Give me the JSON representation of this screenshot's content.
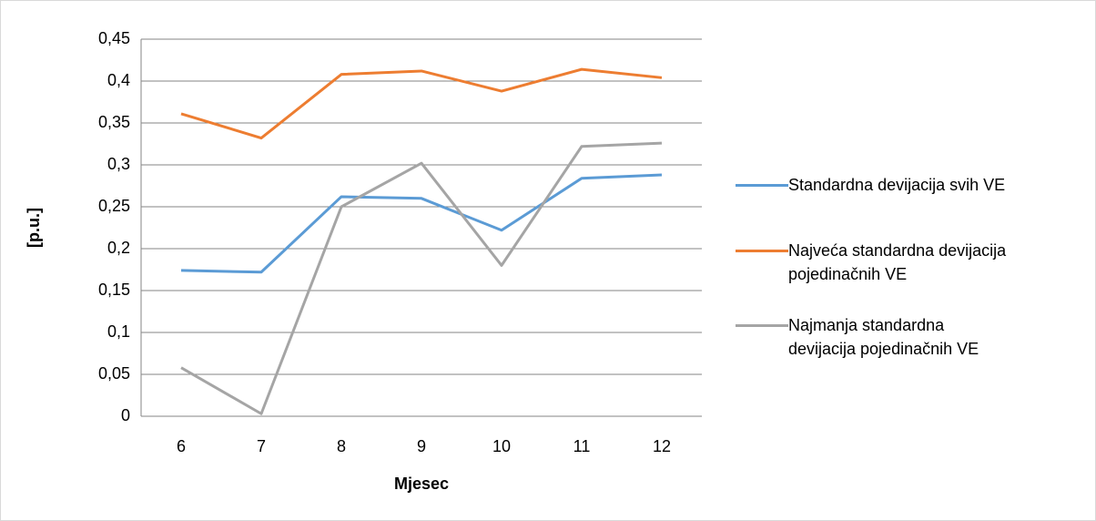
{
  "chart_data": {
    "type": "line",
    "x_label": "Mjesec",
    "y_label": "[p.u.]",
    "categories": [
      "6",
      "7",
      "8",
      "9",
      "10",
      "11",
      "12"
    ],
    "series": [
      {
        "name": "Standardna devijacija svih VE",
        "color": "#5b9bd5",
        "values": [
          0.174,
          0.172,
          0.262,
          0.26,
          0.222,
          0.284,
          0.288
        ]
      },
      {
        "name": "Najveća standardna devijacija pojedinačnih VE",
        "color": "#ed7d31",
        "values": [
          0.361,
          0.332,
          0.408,
          0.412,
          0.388,
          0.414,
          0.404
        ]
      },
      {
        "name": "Najmanja standardna devijacija pojedinačnih VE",
        "color": "#a5a5a5",
        "values": [
          0.058,
          0.003,
          0.25,
          0.302,
          0.18,
          0.322,
          0.326
        ]
      }
    ],
    "ylim": [
      0,
      0.45
    ],
    "yticks": [
      0,
      {
        "value": 0.05,
        "label": "0,05"
      },
      {
        "value": 0.1,
        "label": "0,1"
      },
      {
        "value": 0.15,
        "label": "0,15"
      },
      {
        "value": 0.2,
        "label": "0,2"
      },
      {
        "value": 0.25,
        "label": "0,25"
      },
      {
        "value": 0.3,
        "label": "0,3"
      },
      {
        "value": 0.35,
        "label": "0,35"
      },
      {
        "value": 0.4,
        "label": "0,4"
      },
      {
        "value": 0.45,
        "label": "0,45"
      }
    ],
    "grid": true,
    "legend": "right"
  }
}
